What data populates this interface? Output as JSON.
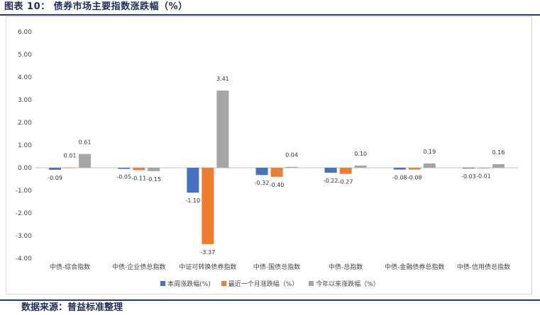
{
  "header": {
    "title": "图表 10：  债券市场主要指数涨跌幅（%）"
  },
  "footer": {
    "source": "数据来源：普益标准整理"
  },
  "chart_data": {
    "type": "bar",
    "title": "",
    "xlabel": "",
    "ylabel": "",
    "ylim": [
      -4.0,
      6.0
    ],
    "yticks": [
      "6.00",
      "5.00",
      "4.00",
      "3.00",
      "2.00",
      "1.00",
      "0.00",
      "-1.00",
      "-2.00",
      "-3.00",
      "-4.00"
    ],
    "grid": false,
    "legend_position": "bottom",
    "categories": [
      "中债-综合指数",
      "中债-企业债总指数",
      "中证可转换债券指数",
      "中债-国债总指数",
      "中债-总指数",
      "中债-金融债券总指数",
      "中债-信用债总指数"
    ],
    "series": [
      {
        "name": "本周涨跌幅(%)",
        "color": "#4472c4",
        "values": [
          -0.09,
          -0.05,
          -1.1,
          -0.32,
          -0.22,
          -0.08,
          -0.03
        ],
        "labels": [
          "-0.09",
          "-0.05",
          "-1.10",
          "-0.32",
          "-0.22",
          "-0.08",
          "-0.03"
        ]
      },
      {
        "name": "最近一个月涨跌幅（%）",
        "color": "#ed7d31",
        "values": [
          0.01,
          -0.11,
          -3.37,
          -0.4,
          -0.27,
          -0.08,
          -0.01
        ],
        "labels": [
          "0.01",
          "-0.11",
          "-3.37",
          "-0.40",
          "-0.27",
          "-0.08",
          "-0.01"
        ]
      },
      {
        "name": "今年以来涨跌幅（%）",
        "color": "#a5a5a5",
        "values": [
          0.61,
          -0.15,
          3.41,
          0.04,
          0.1,
          0.19,
          0.16
        ],
        "labels": [
          "0.61",
          "-0.15",
          "3.41",
          "0.04",
          "0.10",
          "0.19",
          "0.16"
        ]
      }
    ]
  }
}
